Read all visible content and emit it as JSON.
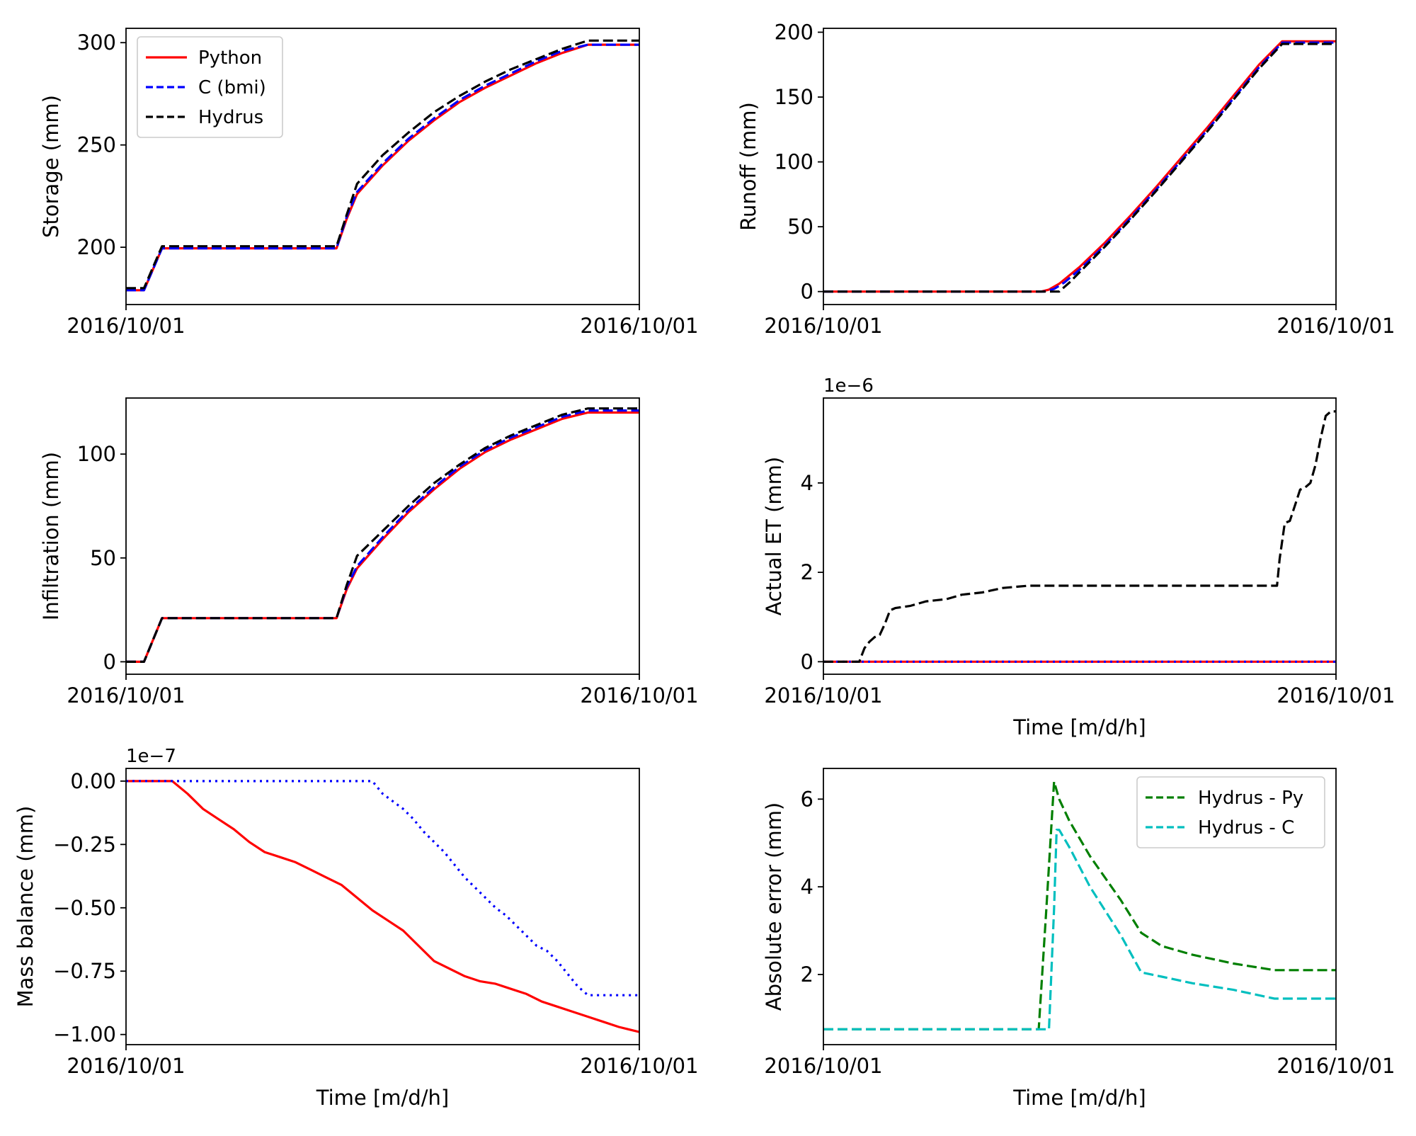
{
  "chart_data": [
    {
      "type": "line",
      "ylabel": "Storage (mm)",
      "xlabel": "",
      "x_ticks": [
        "2016/10/01",
        "2016/10/01"
      ],
      "y_ticks": [
        200,
        250,
        300
      ],
      "xlim": [
        0,
        100
      ],
      "ylim": [
        172,
        307
      ],
      "legend": {
        "position": "top-left",
        "entries": [
          "Python",
          "C (bmi)",
          "Hydrus"
        ]
      },
      "series": [
        {
          "name": "Python",
          "color": "#ff0000",
          "dash": "solid",
          "x": [
            0,
            3.5,
            7,
            41,
            43,
            45,
            50,
            55,
            60,
            65,
            70,
            75,
            80,
            85,
            90,
            100
          ],
          "y": [
            179,
            179,
            199.5,
            199.5,
            214,
            226,
            240,
            252,
            262,
            271,
            278,
            284,
            290,
            295,
            299,
            299
          ]
        },
        {
          "name": "C (bmi)",
          "color": "#0000ff",
          "dash": "dashed",
          "x": [
            0,
            3.5,
            7,
            41,
            43,
            45,
            50,
            55,
            60,
            65,
            70,
            75,
            80,
            85,
            90,
            100
          ],
          "y": [
            179,
            179,
            199.5,
            199.5,
            215,
            227,
            241,
            253,
            263,
            272,
            279,
            285,
            291,
            296,
            299,
            299
          ]
        },
        {
          "name": "Hydrus",
          "color": "#000000",
          "dash": "dashed",
          "x": [
            0,
            3.5,
            7,
            41,
            43,
            45,
            50,
            55,
            60,
            65,
            70,
            75,
            80,
            85,
            90,
            100
          ],
          "y": [
            180,
            180,
            200.5,
            200.5,
            216,
            231,
            245,
            256,
            266,
            274,
            281,
            287,
            292,
            297,
            301,
            301
          ]
        }
      ]
    },
    {
      "type": "line",
      "ylabel": "Runoff (mm)",
      "xlabel": "",
      "x_ticks": [
        "2016/10/01",
        "2016/10/01"
      ],
      "y_ticks": [
        0,
        50,
        100,
        150,
        200
      ],
      "xlim": [
        0,
        100
      ],
      "ylim": [
        -10,
        203
      ],
      "series": [
        {
          "name": "Python",
          "color": "#ff0000",
          "dash": "solid",
          "x": [
            0,
            42.5,
            44,
            46,
            50,
            55,
            60,
            65,
            70,
            75,
            80,
            85,
            89.5,
            100
          ],
          "y": [
            0,
            0,
            1.5,
            6,
            19,
            38,
            59,
            81,
            104,
            127,
            151,
            175,
            193,
            193
          ]
        },
        {
          "name": "C (bmi)",
          "color": "#0000ff",
          "dash": "dashed",
          "x": [
            0,
            43,
            45,
            47,
            50,
            55,
            60,
            65,
            70,
            75,
            80,
            85,
            89.5,
            100
          ],
          "y": [
            0,
            0,
            2,
            7,
            17,
            36,
            57,
            79,
            102,
            125,
            149,
            173,
            192,
            192
          ]
        },
        {
          "name": "Hydrus",
          "color": "#000000",
          "dash": "dashed",
          "x": [
            0,
            46,
            48,
            50,
            55,
            60,
            65,
            70,
            75,
            80,
            85,
            89.5,
            100
          ],
          "y": [
            0,
            0,
            7,
            15,
            35,
            56,
            78,
            101,
            124,
            148,
            172,
            191,
            191
          ]
        }
      ]
    },
    {
      "type": "line",
      "ylabel": "Infiltration (mm)",
      "xlabel": "",
      "x_ticks": [
        "2016/10/01",
        "2016/10/01"
      ],
      "y_ticks": [
        0,
        50,
        100
      ],
      "xlim": [
        0,
        100
      ],
      "ylim": [
        -6,
        127
      ],
      "series": [
        {
          "name": "Python",
          "color": "#ff0000",
          "dash": "solid",
          "x": [
            0,
            3.5,
            7,
            41,
            43,
            45,
            50,
            55,
            60,
            65,
            70,
            75,
            80,
            85,
            90,
            100
          ],
          "y": [
            0,
            0,
            21,
            21,
            35,
            45,
            59,
            72,
            83,
            93,
            101,
            107,
            112,
            117,
            120,
            120
          ]
        },
        {
          "name": "C (bmi)",
          "color": "#0000ff",
          "dash": "dashed",
          "x": [
            0,
            3.5,
            7,
            41,
            43,
            45,
            50,
            55,
            60,
            65,
            70,
            75,
            80,
            85,
            90,
            100
          ],
          "y": [
            0,
            0,
            21,
            21,
            36,
            46,
            60,
            73,
            84,
            94,
            102,
            108,
            113,
            118,
            121,
            121
          ]
        },
        {
          "name": "Hydrus",
          "color": "#000000",
          "dash": "dashed",
          "x": [
            0,
            3.5,
            7,
            41,
            43,
            45,
            50,
            55,
            60,
            65,
            70,
            75,
            80,
            85,
            90,
            100
          ],
          "y": [
            0,
            0,
            21,
            21,
            37,
            51,
            63,
            75,
            86,
            95,
            103,
            109,
            114,
            119,
            122,
            122
          ]
        }
      ]
    },
    {
      "type": "line",
      "ylabel": "Actual ET (mm)",
      "xlabel": "Time [m/d/h]",
      "offset_text": "1e−6",
      "x_ticks": [
        "2016/10/01",
        "2016/10/01"
      ],
      "y_ticks": [
        0,
        2,
        4
      ],
      "xlim": [
        0,
        100
      ],
      "ylim": [
        -0.28,
        5.9
      ],
      "series": [
        {
          "name": "Python",
          "color": "#ff0000",
          "dash": "solid",
          "x": [
            0,
            100
          ],
          "y": [
            0,
            0
          ]
        },
        {
          "name": "C (bmi)",
          "color": "#0000ff",
          "dash": "dotted",
          "x": [
            0,
            100
          ],
          "y": [
            0,
            0
          ]
        },
        {
          "name": "Hydrus",
          "color": "#000000",
          "dash": "dashed",
          "x": [
            0,
            7,
            8,
            9,
            10,
            11,
            12,
            13,
            14,
            17,
            20,
            24,
            27,
            31,
            35,
            40,
            45,
            50,
            60,
            70,
            80,
            88.5,
            89,
            90,
            91,
            92,
            93,
            94,
            95,
            96,
            97,
            98,
            99,
            100
          ],
          "y": [
            0,
            0,
            0.3,
            0.45,
            0.55,
            0.6,
            0.85,
            1.15,
            1.2,
            1.25,
            1.35,
            1.4,
            1.5,
            1.55,
            1.65,
            1.7,
            1.7,
            1.7,
            1.7,
            1.7,
            1.7,
            1.7,
            2.3,
            3.1,
            3.15,
            3.5,
            3.85,
            3.9,
            4.0,
            4.4,
            5.0,
            5.5,
            5.6,
            5.6
          ]
        }
      ]
    },
    {
      "type": "line",
      "ylabel": "Mass balance (mm)",
      "xlabel": "Time [m/d/h]",
      "offset_text": "1e−7",
      "x_ticks": [
        "2016/10/01",
        "2016/10/01"
      ],
      "y_ticks": [
        0.0,
        -0.25,
        -0.5,
        -0.75,
        -1.0
      ],
      "y_tick_labels": [
        "0.00",
        "−0.25",
        "−0.50",
        "−0.75",
        "−1.00"
      ],
      "xlim": [
        0,
        100
      ],
      "ylim": [
        -1.04,
        0.05
      ],
      "series": [
        {
          "name": "Python",
          "color": "#ff0000",
          "dash": "solid",
          "x": [
            0,
            9,
            12,
            15,
            18,
            21,
            24,
            27,
            30,
            33,
            36,
            39,
            42,
            45,
            48,
            51,
            54,
            57,
            60,
            63,
            66,
            69,
            72,
            75,
            78,
            81,
            84,
            87,
            90,
            93,
            96,
            100
          ],
          "y": [
            0,
            0,
            -0.05,
            -0.11,
            -0.15,
            -0.19,
            -0.24,
            -0.28,
            -0.3,
            -0.32,
            -0.35,
            -0.38,
            -0.41,
            -0.46,
            -0.51,
            -0.55,
            -0.59,
            -0.65,
            -0.71,
            -0.74,
            -0.77,
            -0.79,
            -0.8,
            -0.82,
            -0.84,
            -0.87,
            -0.89,
            -0.91,
            -0.93,
            -0.95,
            -0.97,
            -0.99
          ]
        },
        {
          "name": "C (bmi)",
          "color": "#0000ff",
          "dash": "dotted",
          "x": [
            0,
            48,
            50,
            52,
            54,
            56,
            58,
            60,
            62,
            64,
            66,
            68,
            70,
            72,
            74,
            76,
            78,
            80,
            82,
            84,
            86,
            88,
            90,
            100
          ],
          "y": [
            0,
            0,
            -0.05,
            -0.08,
            -0.11,
            -0.15,
            -0.2,
            -0.24,
            -0.28,
            -0.33,
            -0.38,
            -0.42,
            -0.46,
            -0.5,
            -0.53,
            -0.57,
            -0.61,
            -0.65,
            -0.67,
            -0.71,
            -0.76,
            -0.81,
            -0.845,
            -0.845
          ]
        }
      ]
    },
    {
      "type": "line",
      "ylabel": "Absolute error (mm)",
      "xlabel": "Time [m/d/h]",
      "x_ticks": [
        "2016/10/01",
        "2016/10/01"
      ],
      "y_ticks": [
        2,
        4,
        6
      ],
      "xlim": [
        0,
        100
      ],
      "ylim": [
        0.4,
        6.7
      ],
      "legend": {
        "position": "top-right",
        "entries": [
          "Hydrus - Py",
          "Hydrus - C"
        ]
      },
      "series": [
        {
          "name": "Hydrus - Py",
          "color": "#007f00",
          "dash": "dashed",
          "x": [
            0,
            42,
            43.5,
            45,
            46,
            48,
            52,
            58,
            62,
            66,
            72,
            80,
            88,
            90,
            100
          ],
          "y": [
            0.75,
            0.75,
            3.5,
            6.4,
            6.0,
            5.5,
            4.7,
            3.7,
            2.95,
            2.65,
            2.45,
            2.25,
            2.1,
            2.1,
            2.1
          ]
        },
        {
          "name": "Hydrus - C",
          "color": "#00bfbf",
          "dash": "dashed",
          "x": [
            0,
            44,
            45,
            45.5,
            46,
            48,
            52,
            58,
            62,
            66,
            72,
            80,
            88,
            90,
            100
          ],
          "y": [
            0.75,
            0.75,
            3.5,
            5.3,
            5.3,
            4.9,
            4.0,
            2.9,
            2.05,
            1.95,
            1.8,
            1.65,
            1.45,
            1.45,
            1.45
          ]
        }
      ]
    }
  ]
}
